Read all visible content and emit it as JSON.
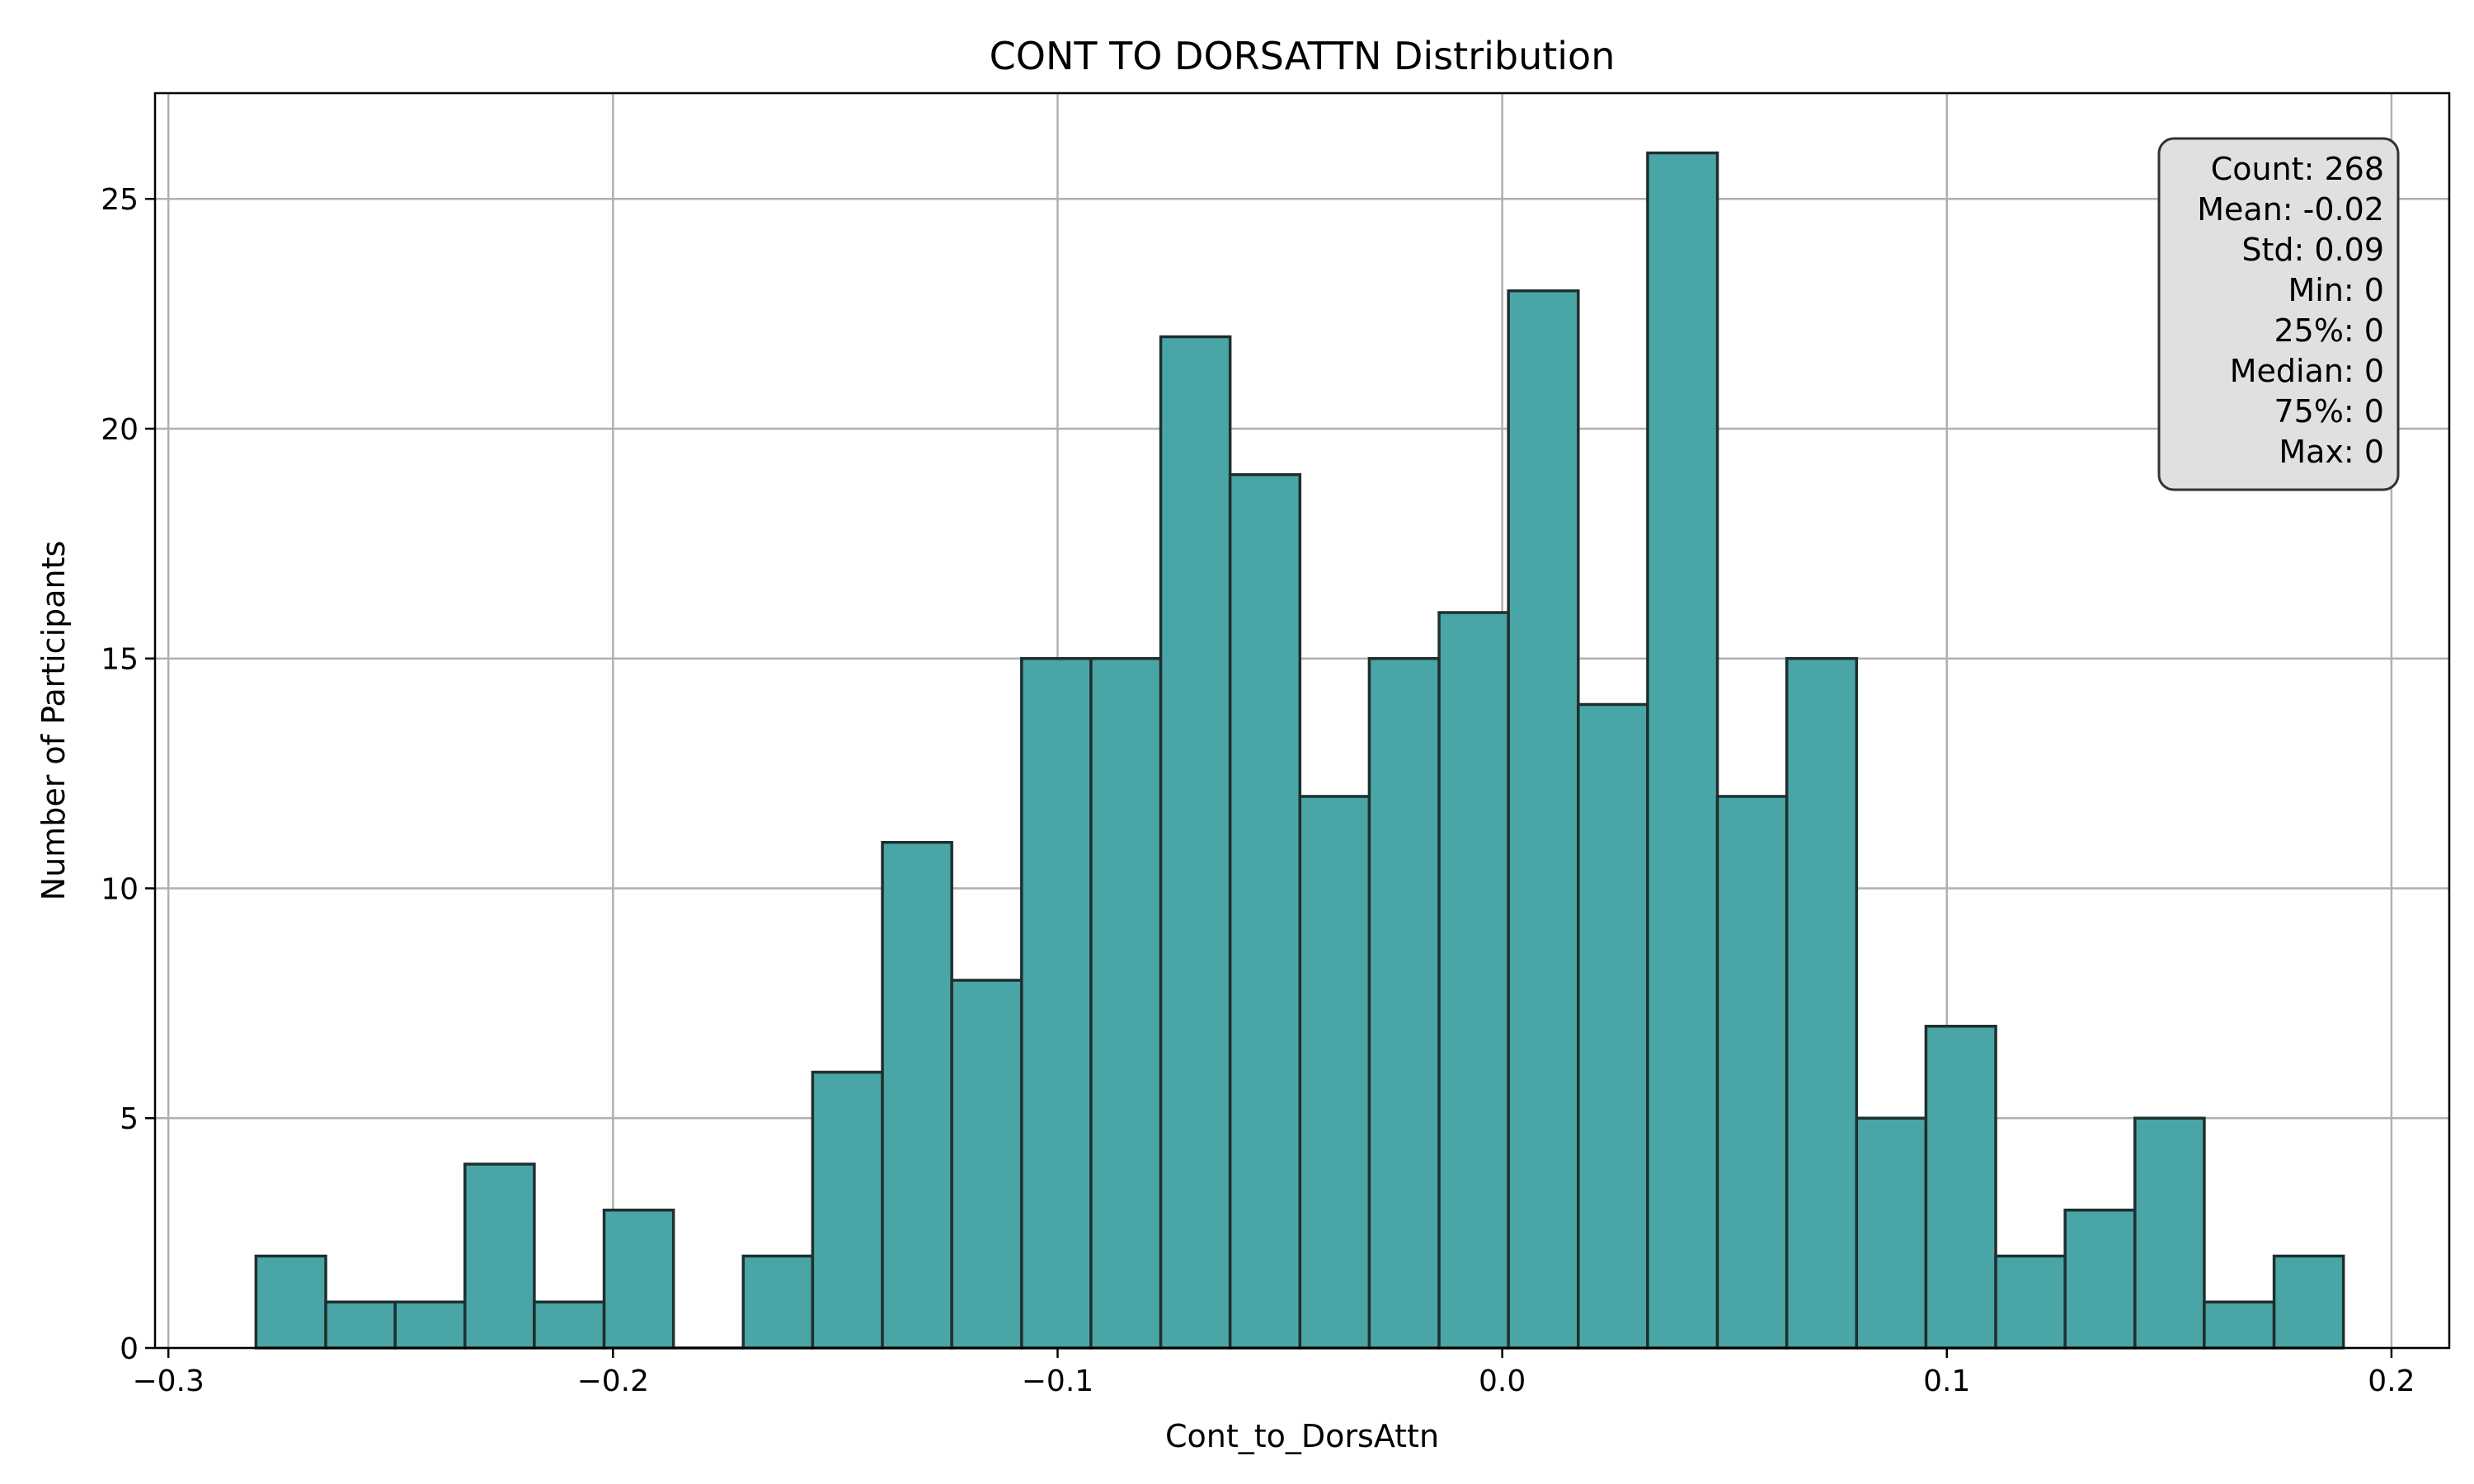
{
  "chart_data": {
    "type": "bar",
    "title": "CONT TO DORSATTN Distribution",
    "xlabel": "Cont_to_DorsAttn",
    "ylabel": "Number of Participants",
    "xlim": [
      -0.303,
      0.213
    ],
    "ylim": [
      0,
      27.3
    ],
    "grid": true,
    "bar_color": "#4aa6a6",
    "edge_color": "#1f2f2f",
    "bin_edges": [
      -0.2803,
      -0.2646,
      -0.249,
      -0.2333,
      -0.2177,
      -0.202,
      -0.1864,
      -0.1707,
      -0.1551,
      -0.1394,
      -0.1238,
      -0.1081,
      -0.0925,
      -0.0768,
      -0.0612,
      -0.0455,
      -0.0299,
      -0.0142,
      0.0014,
      0.0171,
      0.0327,
      0.0484,
      0.064,
      0.0797,
      0.0953,
      0.111,
      0.1266,
      0.1423,
      0.1579,
      0.1736,
      0.1892
    ],
    "values": [
      2,
      1,
      1,
      4,
      1,
      3,
      0,
      2,
      6,
      11,
      8,
      15,
      15,
      22,
      19,
      12,
      15,
      16,
      23,
      14,
      26,
      12,
      15,
      5,
      7,
      2,
      3,
      5,
      1,
      2
    ],
    "x_ticks": [
      -0.3,
      -0.2,
      -0.1,
      0.0,
      0.1,
      0.2
    ],
    "x_tick_labels": [
      "−0.3",
      "−0.2",
      "−0.1",
      "0.0",
      "0.1",
      "0.2"
    ],
    "y_ticks": [
      0,
      5,
      10,
      15,
      20,
      25
    ],
    "y_tick_labels": [
      "0",
      "5",
      "10",
      "15",
      "20",
      "25"
    ],
    "stats_box": {
      "placement": "top-right",
      "lines": [
        "Count: 268",
        "Mean: -0.02",
        "Std: 0.09",
        "Min: 0",
        "25%: 0",
        "Median: 0",
        "75%: 0",
        "Max: 0"
      ]
    }
  }
}
